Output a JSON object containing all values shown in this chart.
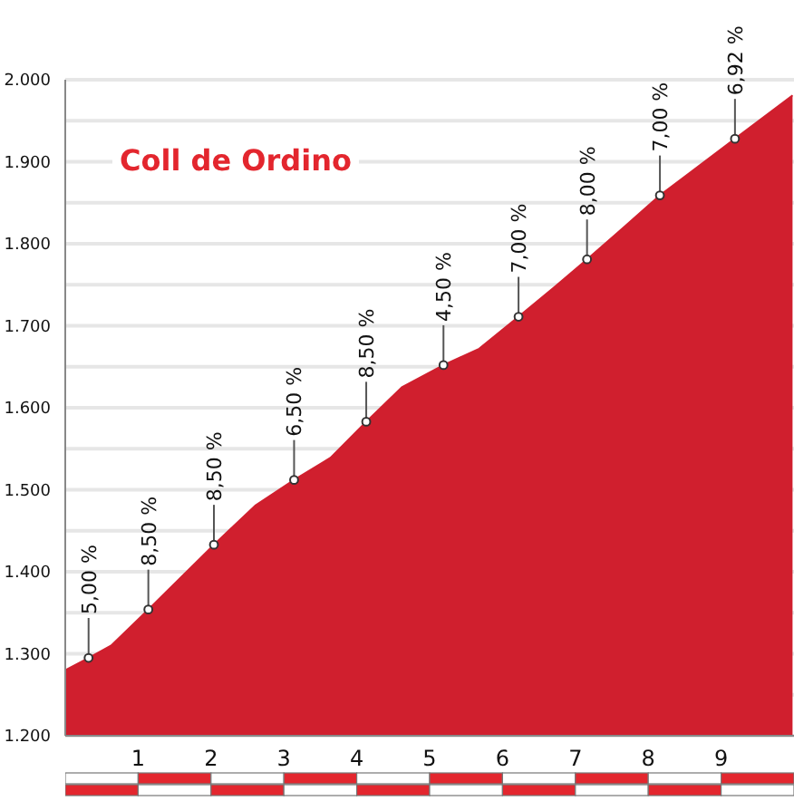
{
  "chart_data": {
    "type": "area",
    "title": "Coll de Ordino",
    "series": [
      {
        "color": "#d01f2e",
        "x": [
          0,
          0.32,
          0.63,
          1.14,
          2.04,
          2.61,
          3.14,
          3.64,
          4.13,
          4.62,
          5.19,
          5.68,
          6.22,
          6.71,
          7.16,
          7.69,
          8.16,
          9.19,
          9.98
        ],
        "values": [
          1280,
          1295,
          1310,
          1354,
          1433,
          1481,
          1512,
          1539,
          1583,
          1625,
          1652,
          1672,
          1711,
          1747,
          1781,
          1822,
          1859,
          1928,
          1981
        ]
      }
    ],
    "xlim": [
      0,
      10
    ],
    "xticks": [
      1,
      2,
      3,
      4,
      5,
      6,
      7,
      8,
      9
    ],
    "ylim": [
      1200,
      2000
    ],
    "yticks": [
      {
        "value": 1200,
        "label": "1.200"
      },
      {
        "value": 1250,
        "label": null
      },
      {
        "value": 1300,
        "label": "1.300"
      },
      {
        "value": 1350,
        "label": null
      },
      {
        "value": 1400,
        "label": "1.400"
      },
      {
        "value": 1450,
        "label": null
      },
      {
        "value": 1500,
        "label": "1.500"
      },
      {
        "value": 1550,
        "label": null
      },
      {
        "value": 1600,
        "label": "1.600"
      },
      {
        "value": 1650,
        "label": null
      },
      {
        "value": 1700,
        "label": "1.700"
      },
      {
        "value": 1750,
        "label": null
      },
      {
        "value": 1800,
        "label": "1.800"
      },
      {
        "value": 1850,
        "label": null
      },
      {
        "value": 1900,
        "label": "1.900"
      },
      {
        "value": 1950,
        "label": null
      },
      {
        "value": 2000,
        "label": "2.000"
      }
    ],
    "grid": "y",
    "annotations": [
      {
        "text": "5,00 %",
        "x": 0.32,
        "y": 1295
      },
      {
        "text": "8,50 %",
        "x": 1.14,
        "y": 1354
      },
      {
        "text": "8,50 %",
        "x": 2.04,
        "y": 1433
      },
      {
        "text": "6,50 %",
        "x": 3.14,
        "y": 1512
      },
      {
        "text": "8,50 %",
        "x": 4.13,
        "y": 1583
      },
      {
        "text": "4,50 %",
        "x": 5.19,
        "y": 1652
      },
      {
        "text": "7,00 %",
        "x": 6.22,
        "y": 1711
      },
      {
        "text": "8,00 %",
        "x": 7.16,
        "y": 1781
      },
      {
        "text": "7,00 %",
        "x": 8.16,
        "y": 1859
      },
      {
        "text": "6,92 %",
        "x": 9.19,
        "y": 1928
      }
    ]
  }
}
